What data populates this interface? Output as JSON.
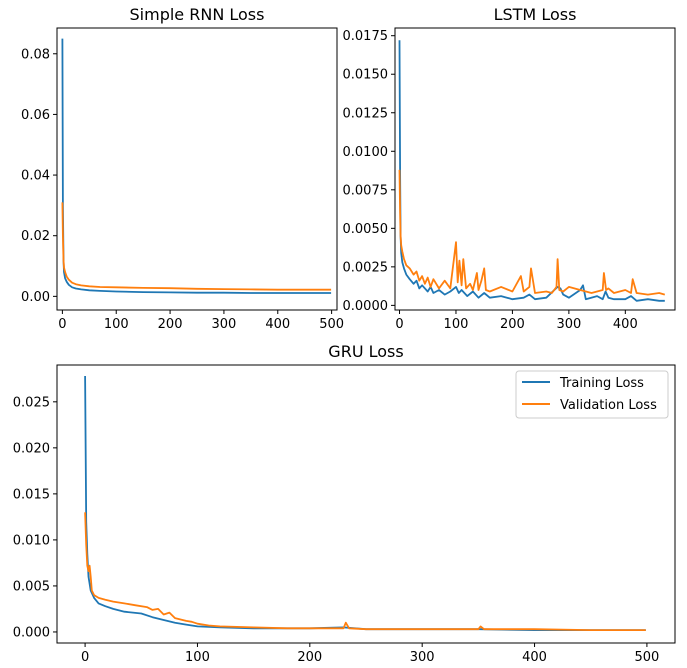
{
  "colors": {
    "training": "#1f77b4",
    "validation": "#ff7f0e"
  },
  "chart_data": [
    {
      "id": "rnn",
      "type": "line",
      "title": "Simple RNN Loss",
      "xlim": [
        -10,
        510
      ],
      "ylim": [
        -0.0045,
        0.0885
      ],
      "xticks": [
        0,
        100,
        200,
        300,
        400,
        500
      ],
      "yticks": [
        0.0,
        0.02,
        0.04,
        0.06,
        0.08
      ],
      "ytick_labels": [
        "0.00",
        "0.02",
        "0.04",
        "0.06",
        "0.08"
      ],
      "series": [
        {
          "name": "Training Loss",
          "color_key": "training",
          "x": [
            0,
            1,
            2,
            3,
            5,
            8,
            12,
            18,
            25,
            35,
            50,
            70,
            100,
            150,
            200,
            250,
            300,
            350,
            400,
            450,
            499
          ],
          "y": [
            0.085,
            0.03,
            0.012,
            0.008,
            0.006,
            0.0048,
            0.0038,
            0.003,
            0.0026,
            0.0023,
            0.002,
            0.0018,
            0.0016,
            0.0014,
            0.0013,
            0.0012,
            0.0012,
            0.0011,
            0.0011,
            0.0011,
            0.0011
          ]
        },
        {
          "name": "Validation Loss",
          "color_key": "validation",
          "x": [
            0,
            1,
            2,
            3,
            5,
            8,
            12,
            18,
            25,
            35,
            50,
            70,
            100,
            150,
            200,
            250,
            300,
            350,
            400,
            450,
            499
          ],
          "y": [
            0.031,
            0.02,
            0.012,
            0.0095,
            0.008,
            0.0065,
            0.0055,
            0.0045,
            0.004,
            0.0036,
            0.0033,
            0.0031,
            0.003,
            0.0028,
            0.0027,
            0.0025,
            0.0024,
            0.0023,
            0.0022,
            0.0022,
            0.0022
          ]
        }
      ]
    },
    {
      "id": "lstm",
      "type": "line",
      "title": "LSTM Loss",
      "xlim": [
        -8,
        488
      ],
      "ylim": [
        -0.0003,
        0.018
      ],
      "xticks": [
        0,
        100,
        200,
        300,
        400
      ],
      "yticks": [
        0.0,
        0.0025,
        0.005,
        0.0075,
        0.01,
        0.0125,
        0.015,
        0.0175
      ],
      "ytick_labels": [
        "0.0000",
        "0.0025",
        "0.0050",
        "0.0075",
        "0.0100",
        "0.0125",
        "0.0150",
        "0.0175"
      ],
      "series": [
        {
          "name": "Training Loss",
          "color_key": "training",
          "x": [
            0,
            1,
            2,
            3,
            5,
            8,
            12,
            18,
            25,
            30,
            35,
            40,
            50,
            55,
            60,
            70,
            80,
            90,
            100,
            105,
            110,
            120,
            130,
            140,
            150,
            160,
            180,
            200,
            220,
            230,
            240,
            260,
            280,
            285,
            290,
            300,
            320,
            325,
            330,
            350,
            360,
            365,
            370,
            380,
            400,
            410,
            420,
            440,
            460,
            470
          ],
          "y": [
            0.0172,
            0.0085,
            0.0045,
            0.0034,
            0.0028,
            0.0024,
            0.002,
            0.0017,
            0.0014,
            0.0016,
            0.0011,
            0.0013,
            0.0009,
            0.0012,
            0.0008,
            0.001,
            0.0007,
            0.0009,
            0.0012,
            0.0008,
            0.001,
            0.0006,
            0.0009,
            0.0005,
            0.0008,
            0.0005,
            0.0006,
            0.0004,
            0.0005,
            0.0007,
            0.0004,
            0.0005,
            0.0012,
            0.0011,
            0.0007,
            0.0005,
            0.001,
            0.0013,
            0.0004,
            0.0006,
            0.0004,
            0.0009,
            0.0005,
            0.0004,
            0.0004,
            0.0006,
            0.0003,
            0.0004,
            0.0003,
            0.0003
          ]
        },
        {
          "name": "Validation Loss",
          "color_key": "validation",
          "x": [
            0,
            1,
            2,
            3,
            5,
            8,
            12,
            18,
            25,
            30,
            35,
            40,
            45,
            50,
            55,
            60,
            70,
            80,
            90,
            100,
            103,
            106,
            110,
            113,
            118,
            125,
            130,
            137,
            140,
            145,
            150,
            153,
            160,
            180,
            200,
            215,
            220,
            230,
            233,
            240,
            260,
            270,
            278,
            280,
            283,
            290,
            300,
            320,
            340,
            360,
            362,
            366,
            370,
            380,
            400,
            410,
            413,
            420,
            440,
            460,
            470
          ],
          "y": [
            0.0088,
            0.006,
            0.0045,
            0.0039,
            0.0035,
            0.003,
            0.0026,
            0.0024,
            0.002,
            0.0022,
            0.0016,
            0.0019,
            0.0014,
            0.0018,
            0.0012,
            0.0017,
            0.0011,
            0.0016,
            0.0011,
            0.0041,
            0.0015,
            0.0029,
            0.0013,
            0.003,
            0.0011,
            0.0014,
            0.001,
            0.0021,
            0.001,
            0.0016,
            0.0024,
            0.001,
            0.0009,
            0.0012,
            0.0009,
            0.0019,
            0.0009,
            0.0012,
            0.0024,
            0.0008,
            0.0009,
            0.0008,
            0.0012,
            0.003,
            0.001,
            0.0009,
            0.0012,
            0.001,
            0.0008,
            0.001,
            0.0021,
            0.001,
            0.0011,
            0.0008,
            0.001,
            0.0008,
            0.0017,
            0.0008,
            0.0007,
            0.0008,
            0.0007
          ]
        }
      ]
    },
    {
      "id": "gru",
      "type": "line",
      "title": "GRU Loss",
      "xlim": [
        -25,
        525
      ],
      "ylim": [
        -0.0012,
        0.029
      ],
      "xticks": [
        0,
        100,
        200,
        300,
        400,
        500
      ],
      "yticks": [
        0.0,
        0.005,
        0.01,
        0.015,
        0.02,
        0.025
      ],
      "ytick_labels": [
        "0.000",
        "0.005",
        "0.010",
        "0.015",
        "0.020",
        "0.025"
      ],
      "legend": {
        "position": "upper-right",
        "entries": [
          "Training Loss",
          "Validation Loss"
        ]
      },
      "series": [
        {
          "name": "Training Loss",
          "color_key": "training",
          "x": [
            0,
            1,
            2,
            3,
            5,
            8,
            12,
            18,
            25,
            35,
            50,
            60,
            70,
            80,
            90,
            100,
            120,
            150,
            200,
            230,
            250,
            300,
            350,
            400,
            450,
            499
          ],
          "y": [
            0.0278,
            0.012,
            0.0085,
            0.006,
            0.0045,
            0.0037,
            0.0031,
            0.0028,
            0.0025,
            0.0022,
            0.002,
            0.0016,
            0.0013,
            0.001,
            0.0008,
            0.0006,
            0.0005,
            0.0004,
            0.0004,
            0.0005,
            0.0003,
            0.0003,
            0.0003,
            0.0002,
            0.0002,
            0.0002
          ]
        },
        {
          "name": "Validation Loss",
          "color_key": "validation",
          "x": [
            0,
            1,
            2,
            3,
            4,
            5,
            6,
            8,
            12,
            18,
            25,
            35,
            45,
            55,
            60,
            65,
            70,
            75,
            80,
            90,
            95,
            100,
            110,
            120,
            150,
            180,
            200,
            230,
            232,
            235,
            250,
            300,
            350,
            352,
            355,
            400,
            450,
            499
          ],
          "y": [
            0.013,
            0.0095,
            0.0072,
            0.0066,
            0.0072,
            0.006,
            0.0045,
            0.004,
            0.0037,
            0.0035,
            0.0033,
            0.0031,
            0.0029,
            0.0027,
            0.0024,
            0.0025,
            0.0019,
            0.0021,
            0.0015,
            0.0012,
            0.0011,
            0.0009,
            0.0007,
            0.0006,
            0.0005,
            0.0004,
            0.0004,
            0.0004,
            0.001,
            0.0004,
            0.0003,
            0.0003,
            0.0003,
            0.0006,
            0.0003,
            0.0003,
            0.0002,
            0.0002
          ]
        }
      ]
    }
  ]
}
